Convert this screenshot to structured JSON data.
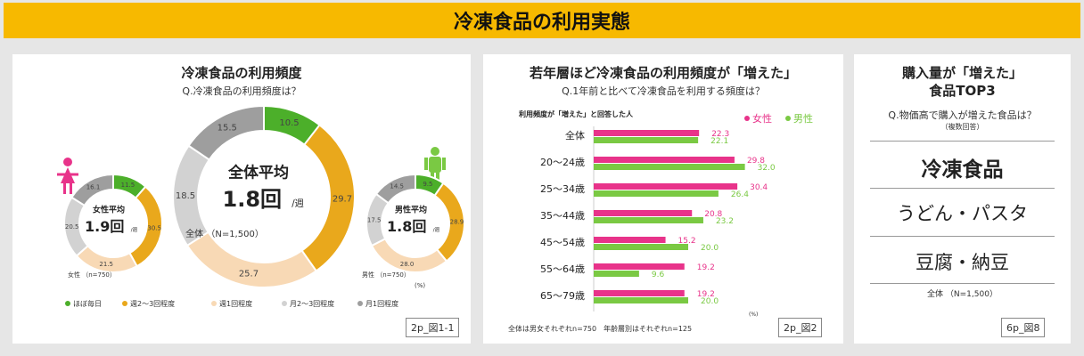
{
  "banner_title": "冷凍食品の利用実態",
  "panel1": {
    "title": "冷凍食品の利用頻度",
    "question": "Q.冷凍食品の利用頻度は？",
    "ref": "2p_図1-1",
    "unit": "(%)",
    "legend": [
      "ほぼ毎日",
      "週2～3回程度",
      "週1回程度",
      "月2～3回程度",
      "月1回程度"
    ],
    "colors": [
      "#4caf2a",
      "#e9a81c",
      "#f8d9b5",
      "#d2d2d2",
      "#9e9e9e"
    ],
    "center_donut": {
      "label": "全体平均",
      "value": "1.8回",
      "unit": "/週",
      "n": "全体 （N=1,500）"
    },
    "female_donut": {
      "label": "女性平均",
      "value": "1.9回",
      "unit": "/週",
      "n": "女性 （n=750）"
    },
    "male_donut": {
      "label": "男性平均",
      "value": "1.8回",
      "unit": "/週",
      "n": "男性 （n=750）"
    }
  },
  "panel2": {
    "title": "若年層ほど冷凍食品の利用頻度が「増えた」",
    "question": "Q.1年前と比べて冷凍食品を利用する頻度は？",
    "subheading": "利用頻度が「増えた」と回答した人",
    "footnote": "全体は男女それぞれn=750　年齢層別はそれぞれn=125",
    "unit": "(%)",
    "ref": "2p_図2"
  },
  "panel3": {
    "title_line1": "購入量が「増えた」",
    "title_line2": "食品TOP3",
    "question": "Q.物価高で購入が増えた食品は？",
    "note": "（複数回答）",
    "items": [
      "冷凍食品",
      "うどん・パスタ",
      "豆腐・納豆"
    ],
    "n": "全体 （N=1,500）",
    "ref": "6p_図8"
  },
  "chart_data": [
    {
      "type": "pie",
      "title": "全体",
      "categories": [
        "ほぼ毎日",
        "週2～3回程度",
        "週1回程度",
        "月2～3回程度",
        "月1回程度"
      ],
      "values": [
        10.5,
        29.7,
        25.7,
        18.5,
        15.5
      ]
    },
    {
      "type": "pie",
      "title": "女性",
      "categories": [
        "ほぼ毎日",
        "週2～3回程度",
        "週1回程度",
        "月2～3回程度",
        "月1回程度"
      ],
      "values": [
        11.5,
        30.5,
        21.5,
        20.5,
        16.1
      ]
    },
    {
      "type": "pie",
      "title": "男性",
      "categories": [
        "ほぼ毎日",
        "週2～3回程度",
        "週1回程度",
        "月2～3回程度",
        "月1回程度"
      ],
      "values": [
        9.5,
        28.9,
        28.0,
        17.5,
        14.5
      ]
    },
    {
      "type": "bar",
      "orientation": "horizontal",
      "categories": [
        "全体",
        "20～24歳",
        "25～34歳",
        "35～44歳",
        "45～54歳",
        "55～64歳",
        "65～79歳"
      ],
      "series": [
        {
          "name": "女性",
          "color": "#e8338a",
          "values": [
            22.3,
            29.8,
            30.4,
            20.8,
            15.2,
            19.2,
            19.2
          ]
        },
        {
          "name": "男性",
          "color": "#7ac943",
          "values": [
            22.1,
            32.0,
            26.4,
            23.2,
            20.0,
            9.6,
            20.0
          ]
        }
      ],
      "xlim": [
        0,
        35
      ],
      "legend": "top-right"
    }
  ]
}
